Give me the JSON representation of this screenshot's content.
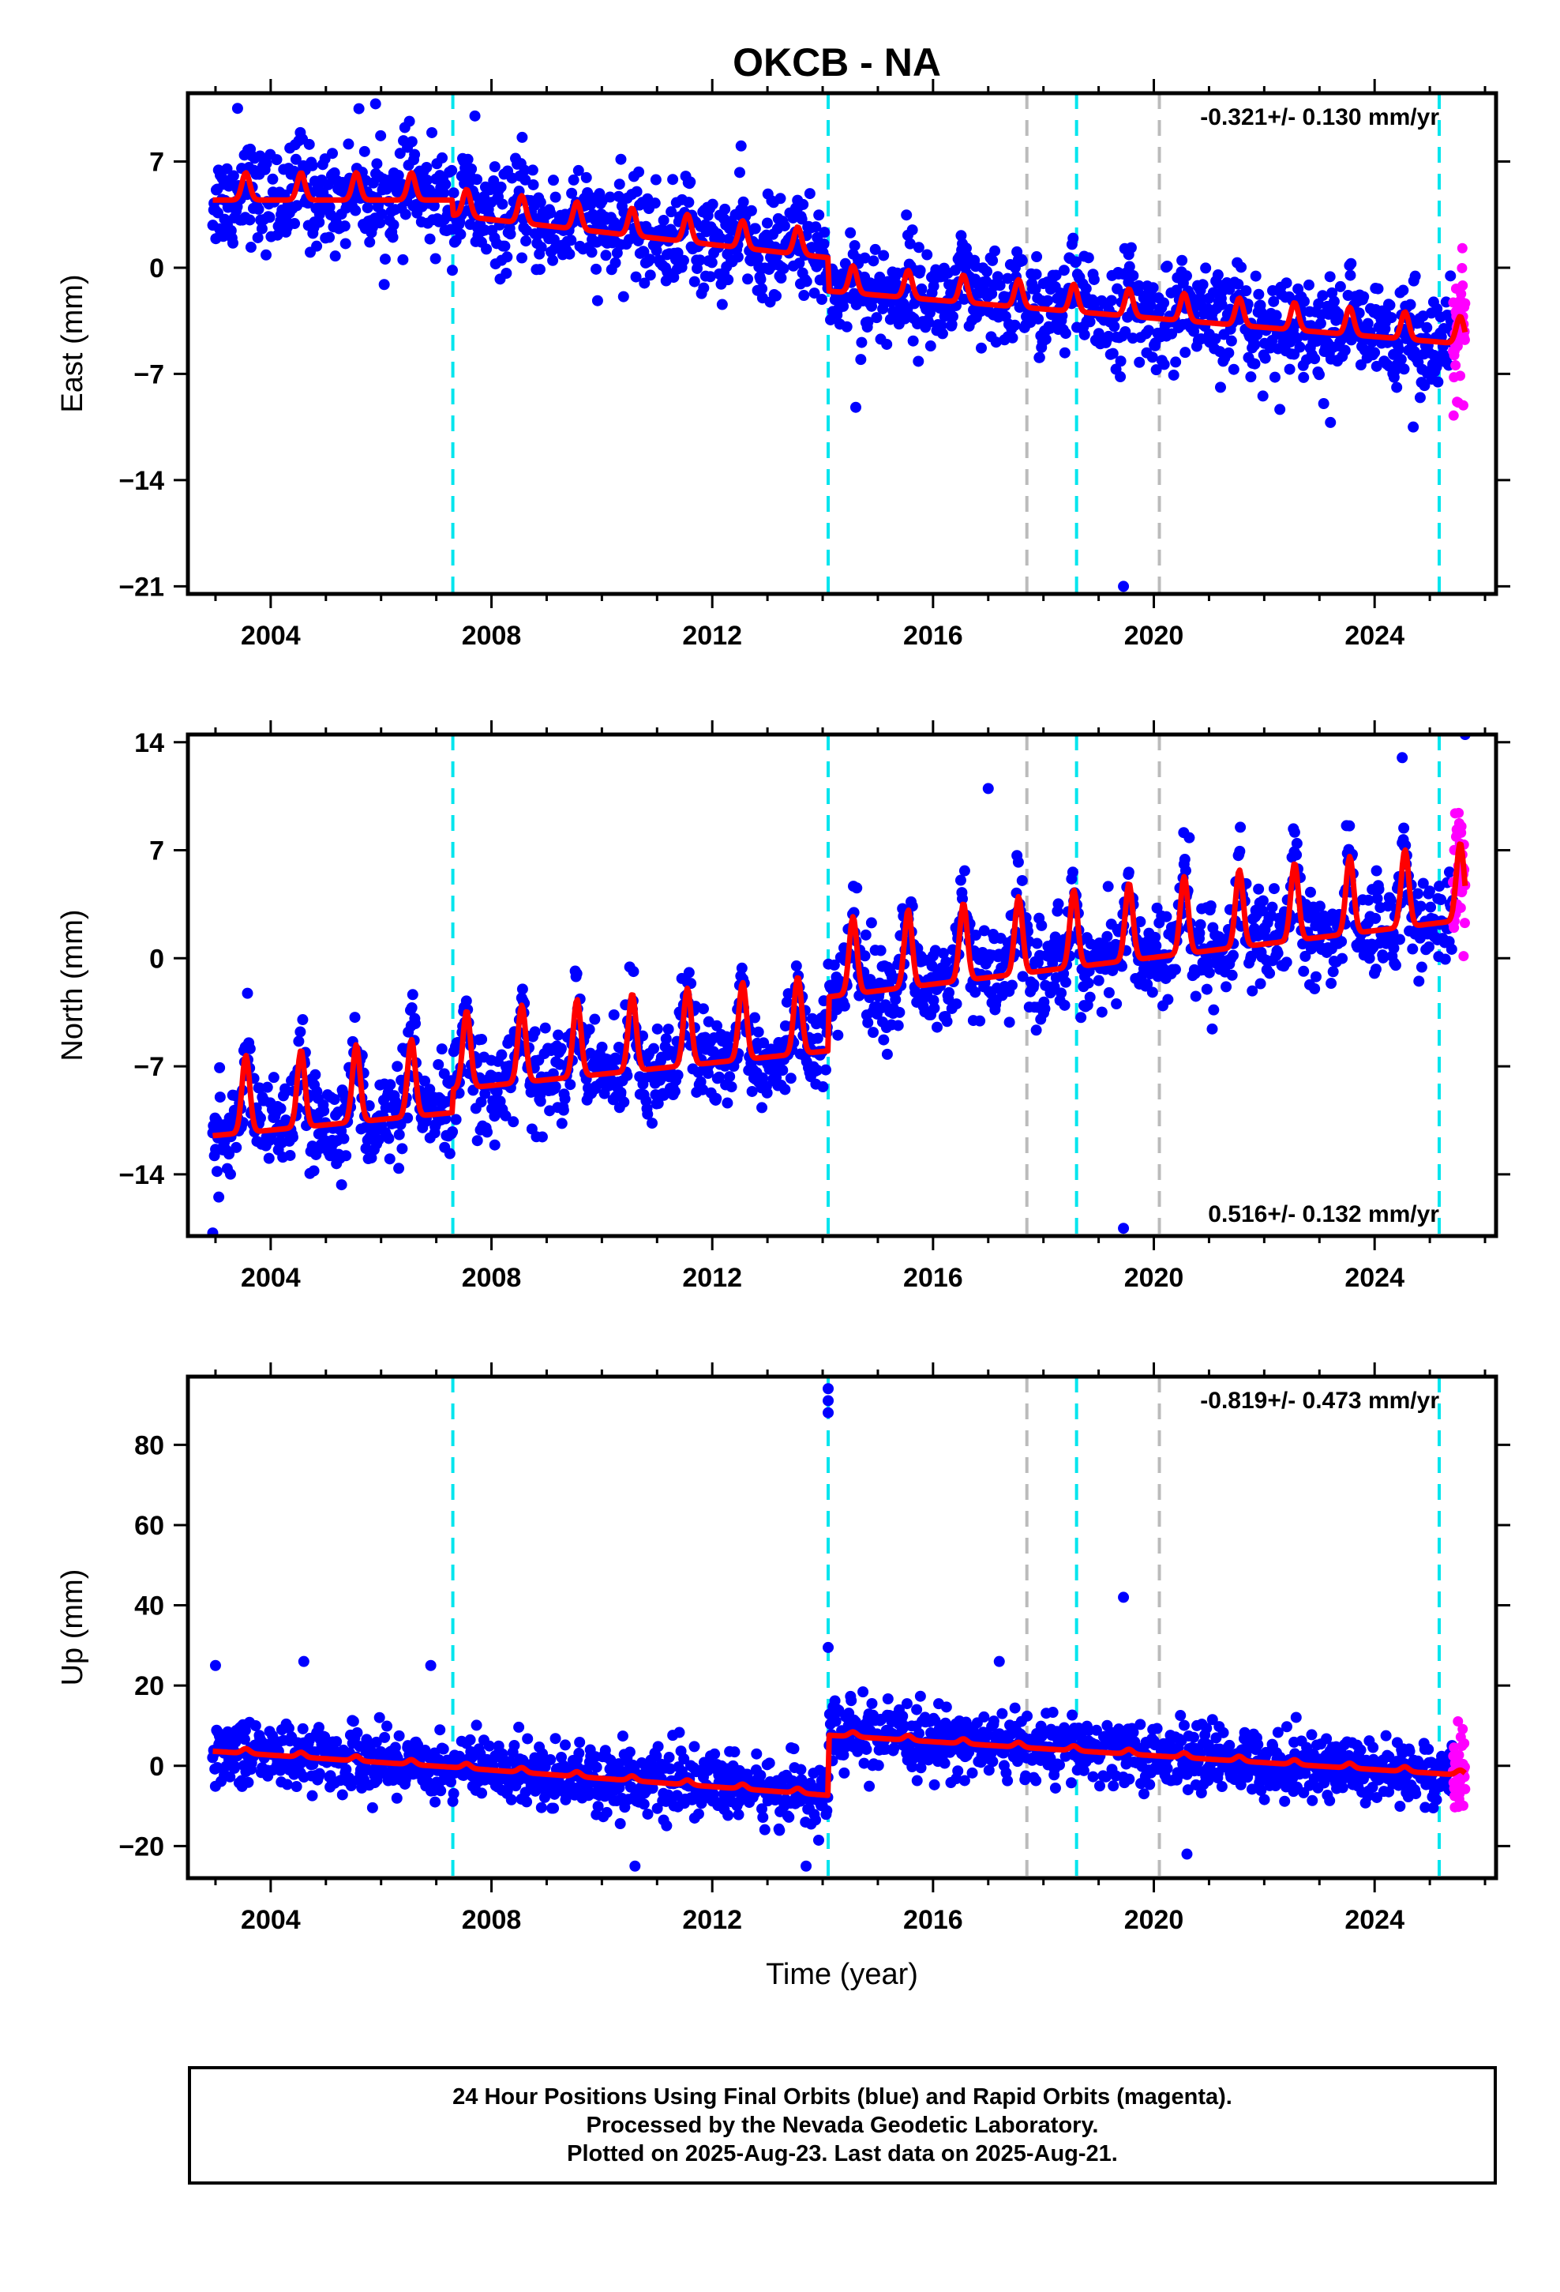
{
  "title": "OKCB - NA",
  "colors": {
    "final": "#0000ff",
    "rapid": "#ff00ff",
    "model": "#ff0000",
    "equipment_change": "#00e5ee",
    "earthquake": "#bbbbbb",
    "frame": "#000000"
  },
  "footer": {
    "line1": "24 Hour Positions Using Final Orbits (blue) and Rapid Orbits (magenta).",
    "line2": "Processed by the Nevada Geodetic Laboratory.",
    "line3": "Plotted on 2025-Aug-23. Last data on 2025-Aug-21."
  },
  "chart_data": [
    {
      "type": "scatter",
      "panel": "east",
      "ylabel": "East (mm)",
      "xlabel": "",
      "xlim": [
        2002.5,
        2026.2
      ],
      "ylim": [
        -21.5,
        11.5
      ],
      "xticks": [
        2004,
        2008,
        2012,
        2016,
        2020,
        2024
      ],
      "yticks": [
        -21,
        -14,
        -7,
        0,
        7
      ],
      "rate_label": "-0.321+/- 0.130 mm/yr",
      "rate_position": "top-right",
      "data_start": 2002.95,
      "data_end": 2025.64,
      "rapid_start": 2025.42,
      "model_anchors": [
        [
          2002.95,
          5.0
        ],
        [
          2007.3,
          5.0
        ],
        [
          2007.3,
          4.0
        ],
        [
          2014.1,
          1.2
        ],
        [
          2014.1,
          -1.0
        ],
        [
          2025.64,
          -4.5
        ]
      ],
      "seasonal_amplitude": 1.8,
      "scatter_sd": 1.6,
      "outliers": [
        [
          2014.6,
          -9.2
        ],
        [
          2019.45,
          -21.0
        ],
        [
          2023.2,
          -10.2
        ],
        [
          2024.7,
          -10.5
        ],
        [
          2003.4,
          10.5
        ],
        [
          2005.9,
          10.8
        ],
        [
          2007.7,
          10.0
        ]
      ],
      "gridlines": false
    },
    {
      "type": "scatter",
      "panel": "north",
      "ylabel": "North (mm)",
      "xlabel": "",
      "xlim": [
        2002.5,
        2026.2
      ],
      "ylim": [
        -18.0,
        14.5
      ],
      "xticks": [
        2004,
        2008,
        2012,
        2016,
        2020,
        2024
      ],
      "yticks": [
        -14,
        -7,
        0,
        7,
        14
      ],
      "rate_label": "0.516+/- 0.132 mm/yr",
      "rate_position": "bottom-right",
      "data_start": 2002.95,
      "data_end": 2025.64,
      "rapid_start": 2025.42,
      "model_anchors": [
        [
          2002.95,
          -10.0
        ],
        [
          2007.3,
          -8.5
        ],
        [
          2007.3,
          -7.0
        ],
        [
          2014.1,
          -4.5
        ],
        [
          2014.1,
          -1.0
        ],
        [
          2025.64,
          4.0
        ]
      ],
      "seasonal_amplitude": 5.0,
      "scatter_sd": 1.5,
      "outliers": [
        [
          2002.95,
          -17.8
        ],
        [
          2019.45,
          -17.5
        ],
        [
          2025.64,
          14.5
        ],
        [
          2024.5,
          13.0
        ],
        [
          2017.0,
          11.0
        ]
      ],
      "gridlines": false
    },
    {
      "type": "scatter",
      "panel": "up",
      "ylabel": "Up (mm)",
      "xlabel": "Time (year)",
      "xlim": [
        2002.5,
        2026.2
      ],
      "ylim": [
        -28,
        97
      ],
      "xticks": [
        2004,
        2008,
        2012,
        2016,
        2020,
        2024
      ],
      "yticks": [
        -20,
        0,
        20,
        40,
        60,
        80
      ],
      "rate_label": "-0.819+/- 0.473 mm/yr",
      "rate_position": "top-right",
      "data_start": 2002.95,
      "data_end": 2025.64,
      "rapid_start": 2025.42,
      "model_anchors": [
        [
          2002.95,
          4.0
        ],
        [
          2007.3,
          0.0
        ],
        [
          2007.3,
          0.0
        ],
        [
          2014.1,
          -7.0
        ],
        [
          2014.1,
          8.0
        ],
        [
          2025.64,
          -2.0
        ]
      ],
      "seasonal_amplitude": 1.2,
      "scatter_sd": 4.0,
      "outliers": [
        [
          2014.1,
          94
        ],
        [
          2014.1,
          91
        ],
        [
          2014.1,
          88
        ],
        [
          2014.1,
          29.5
        ],
        [
          2019.45,
          42
        ],
        [
          2013.7,
          -25
        ],
        [
          2010.6,
          -25
        ],
        [
          2020.6,
          -22
        ],
        [
          2003.0,
          25
        ],
        [
          2004.6,
          26
        ],
        [
          2006.9,
          25
        ],
        [
          2017.2,
          26
        ]
      ],
      "gridlines": false
    }
  ],
  "vlines": {
    "equipment_change": [
      2007.3,
      2014.1,
      2018.6,
      2025.17
    ],
    "earthquake": [
      2017.7,
      2020.1
    ]
  }
}
